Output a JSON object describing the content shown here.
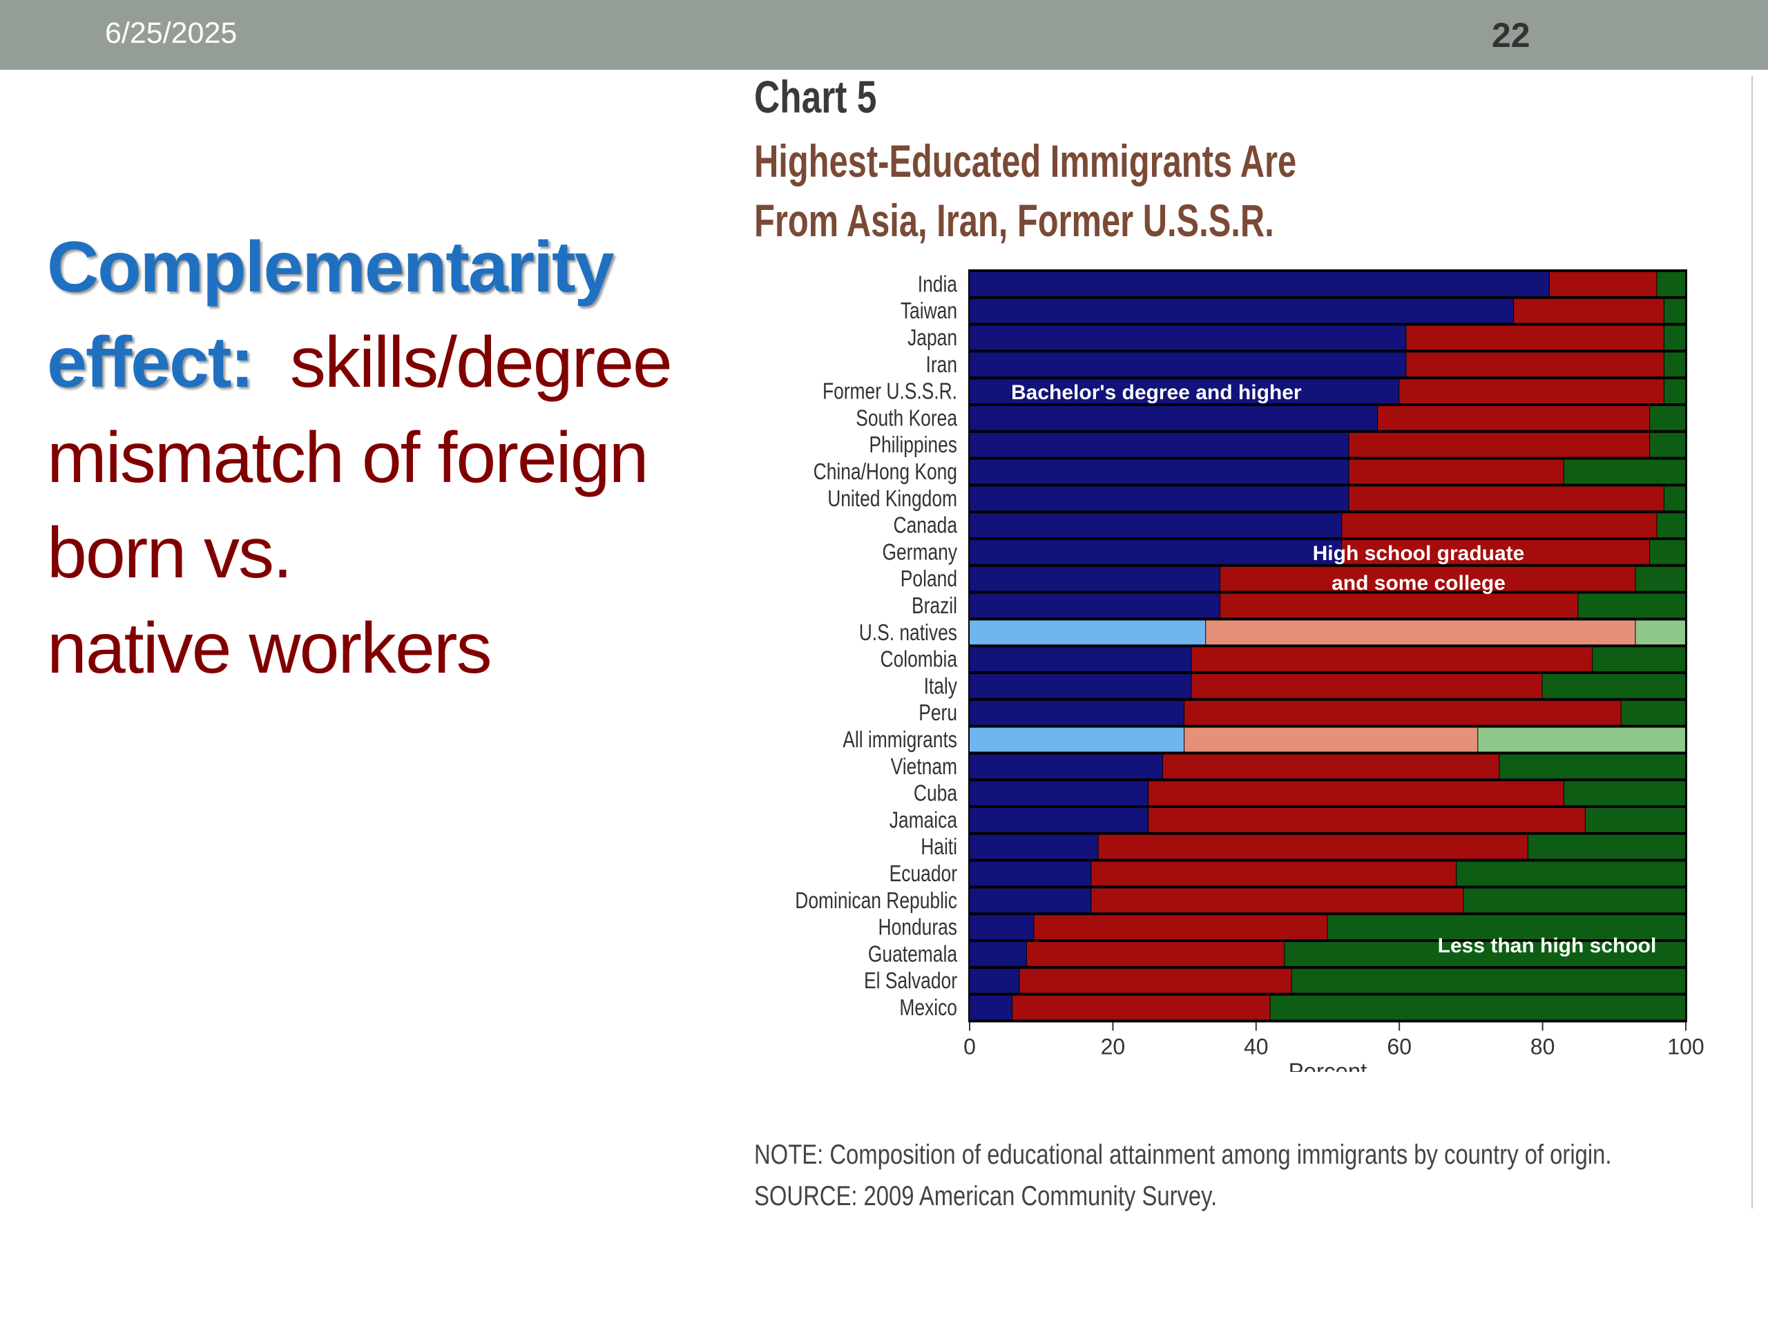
{
  "header": {
    "date": "6/25/2025",
    "page_number": "22"
  },
  "slide": {
    "keyword_line1": "Complementarity",
    "keyword_line2": "effect:",
    "text_after_keyword": "  skills/degree",
    "line3": "mismatch of foreign",
    "line4": "born vs.",
    "line5": "native workers"
  },
  "colors": {
    "bachelor": "#11137a",
    "highschool": "#a50d0d",
    "less_than_hs": "#0d5e14",
    "bachelor_highlight": "#6fb5ef",
    "highschool_highlight": "#e5917a",
    "less_than_hs_highlight": "#8fc88a"
  },
  "chart_data": {
    "type": "bar",
    "orientation": "horizontal",
    "stacked": true,
    "chart_label": "Chart 5",
    "title": "Highest-Educated Immigrants Are From Asia, Iran, Former U.S.S.R.",
    "xlabel": "Percent",
    "xlim": [
      0,
      100
    ],
    "xticks": [
      "0",
      "20",
      "40",
      "60",
      "80",
      "100"
    ],
    "categories": [
      "India",
      "Taiwan",
      "Japan",
      "Iran",
      "Former U.S.S.R.",
      "South Korea",
      "Philippines",
      "China/Hong Kong",
      "United Kingdom",
      "Canada",
      "Germany",
      "Poland",
      "Brazil",
      "U.S. natives",
      "Colombia",
      "Italy",
      "Peru",
      "All immigrants",
      "Vietnam",
      "Cuba",
      "Jamaica",
      "Haiti",
      "Ecuador",
      "Dominican Republic",
      "Honduras",
      "Guatemala",
      "El Salvador",
      "Mexico"
    ],
    "highlighted_categories": [
      "U.S. natives",
      "All immigrants"
    ],
    "series": [
      {
        "name": "Bachelor's degree and higher",
        "values": [
          81,
          76,
          61,
          61,
          60,
          57,
          53,
          53,
          53,
          52,
          52,
          35,
          35,
          33,
          31,
          31,
          30,
          30,
          27,
          25,
          25,
          18,
          17,
          17,
          9,
          8,
          7,
          6
        ]
      },
      {
        "name": "High school graduate and some college",
        "values": [
          15,
          21,
          36,
          36,
          37,
          38,
          42,
          30,
          44,
          44,
          43,
          58,
          50,
          60,
          56,
          49,
          61,
          41,
          47,
          58,
          61,
          60,
          51,
          52,
          41,
          36,
          38,
          36
        ]
      },
      {
        "name": "Less than high school",
        "values": [
          4,
          3,
          3,
          3,
          3,
          5,
          5,
          17,
          3,
          4,
          5,
          7,
          15,
          7,
          13,
          20,
          9,
          29,
          26,
          17,
          14,
          22,
          32,
          31,
          50,
          56,
          55,
          58
        ]
      }
    ],
    "series_labels": [
      "Bachelor's degree and higher",
      "High school graduate",
      "and some college",
      "Less than high school"
    ],
    "note": "NOTE: Composition of educational attainment among immigrants by country of origin.",
    "source": "SOURCE: 2009 American Community Survey."
  }
}
